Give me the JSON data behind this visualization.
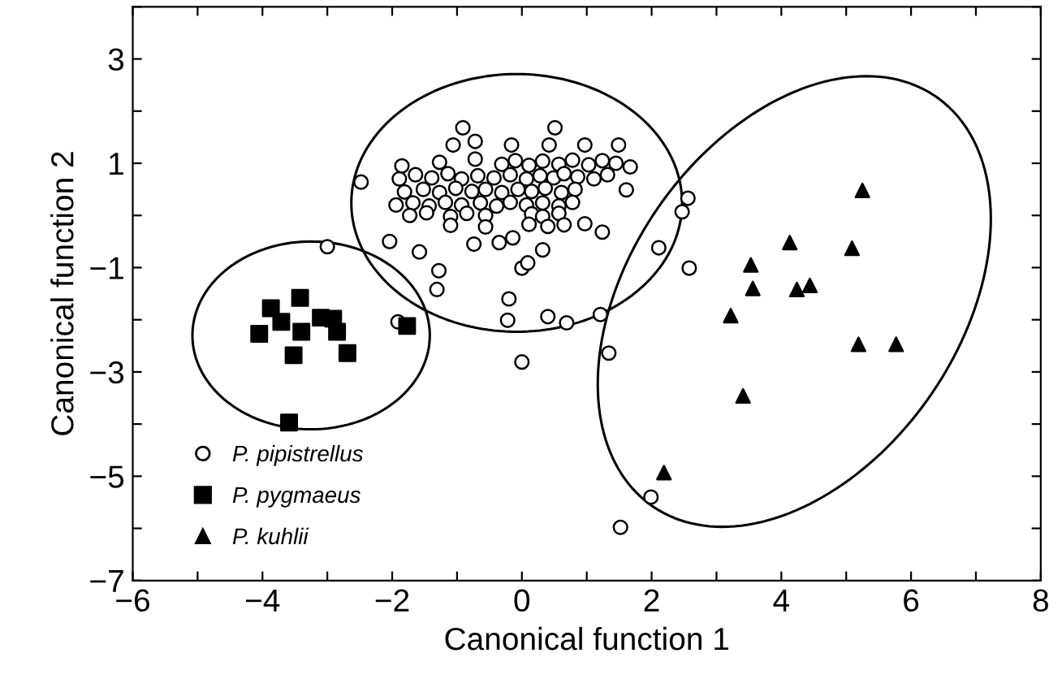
{
  "chart_data": {
    "type": "scatter",
    "xlabel": "Canonical function 1",
    "ylabel": "Canonical function 2",
    "xlim": [
      -6,
      8
    ],
    "ylim": [
      -7,
      4
    ],
    "xticks": [
      {
        "value": -6,
        "label": "−6"
      },
      {
        "value": -5,
        "label": null
      },
      {
        "value": -4,
        "label": "−4"
      },
      {
        "value": -3,
        "label": null
      },
      {
        "value": -2,
        "label": "−2"
      },
      {
        "value": -1,
        "label": null
      },
      0,
      {
        "value": 1,
        "label": null
      },
      2,
      {
        "value": 3,
        "label": null
      },
      4,
      {
        "value": 5,
        "label": null
      },
      6,
      {
        "value": 7,
        "label": null
      },
      8
    ],
    "yticks": [
      {
        "value": -7,
        "label": "−7"
      },
      {
        "value": -6,
        "label": null
      },
      {
        "value": -5,
        "label": "−5"
      },
      {
        "value": -4,
        "label": null
      },
      {
        "value": -3,
        "label": "−3"
      },
      {
        "value": -2,
        "label": null
      },
      {
        "value": -1,
        "label": "−1"
      },
      {
        "value": 0,
        "label": null
      },
      1,
      {
        "value": 2,
        "label": null
      },
      3,
      {
        "value": 4,
        "label": null
      }
    ],
    "grid": false,
    "legend": "bottom left",
    "series": [
      {
        "name": "P. pipistrellus",
        "color": "#000000",
        "marker": "circle",
        "x": [
          -2.48,
          -2.04,
          -1.58,
          -1.28,
          -1.31,
          -0.74,
          -0.35,
          -0.14,
          0.0,
          0.09,
          0.32,
          -0.2,
          -0.22,
          0.4,
          0.69,
          1.21,
          0.0,
          1.34,
          2.58,
          2.56,
          2.47,
          2.11,
          1.99,
          1.52,
          -3.0,
          -1.91,
          0.97,
          1.24,
          1.61,
          -0.91,
          0.51,
          -1.06,
          -0.72,
          -0.16,
          0.42,
          0.97,
          1.49,
          -1.85,
          -1.27,
          -0.72,
          -0.31,
          -0.1,
          0.11,
          0.32,
          0.57,
          0.78,
          1.03,
          1.24,
          1.45,
          1.67,
          -1.89,
          -1.64,
          -1.39,
          -1.14,
          -0.93,
          -0.68,
          -0.43,
          -0.18,
          0.07,
          0.28,
          0.49,
          0.65,
          0.86,
          1.11,
          1.32,
          -1.81,
          -1.52,
          -1.27,
          -1.02,
          -0.77,
          -0.56,
          -0.31,
          -0.06,
          0.15,
          0.36,
          0.61,
          0.82,
          -1.94,
          -1.68,
          -1.43,
          -1.18,
          -0.93,
          -0.64,
          -0.39,
          -0.18,
          0.07,
          0.32,
          0.57,
          0.78,
          -1.73,
          -1.47,
          -1.1,
          -0.85,
          -0.56,
          0.15,
          0.32,
          0.57,
          -1.1,
          -0.56,
          0.11,
          0.4,
          0.65
        ],
        "values": [
          0.64,
          -0.5,
          -0.7,
          -1.06,
          -1.42,
          -0.55,
          -0.52,
          -0.43,
          -1.01,
          -0.91,
          -0.66,
          -1.6,
          -2.01,
          -1.94,
          -2.06,
          -1.9,
          -2.81,
          -2.64,
          -1.01,
          0.33,
          0.07,
          -0.62,
          -5.4,
          -5.98,
          -0.6,
          -2.04,
          -0.16,
          -0.32,
          0.49,
          1.68,
          1.68,
          1.35,
          1.42,
          1.35,
          1.35,
          1.35,
          1.35,
          0.95,
          1.02,
          1.08,
          0.98,
          1.05,
          0.96,
          1.04,
          0.98,
          1.06,
          0.97,
          1.05,
          1.0,
          0.93,
          0.7,
          0.78,
          0.72,
          0.8,
          0.7,
          0.76,
          0.72,
          0.78,
          0.7,
          0.76,
          0.72,
          0.8,
          0.74,
          0.7,
          0.78,
          0.45,
          0.5,
          0.44,
          0.52,
          0.46,
          0.5,
          0.44,
          0.5,
          0.46,
          0.52,
          0.44,
          0.5,
          0.2,
          0.24,
          0.18,
          0.25,
          0.2,
          0.24,
          0.18,
          0.25,
          0.2,
          0.24,
          0.18,
          0.25,
          0.0,
          0.05,
          -0.02,
          0.04,
          0.0,
          0.03,
          -0.02,
          0.04,
          -0.19,
          -0.22,
          -0.17,
          -0.21,
          -0.18
        ]
      },
      {
        "name": "P. pygmaeus",
        "color": "#000000",
        "marker": "square",
        "x": [
          -3.42,
          -3.87,
          -3.71,
          -4.05,
          -3.4,
          -3.1,
          -2.91,
          -2.85,
          -3.52,
          -2.69,
          -1.77,
          -3.59
        ],
        "values": [
          -1.58,
          -1.78,
          -2.04,
          -2.27,
          -2.23,
          -1.96,
          -1.98,
          -2.23,
          -2.68,
          -2.64,
          -2.12,
          -3.97
        ]
      },
      {
        "name": "P. kuhlii",
        "color": "#000000",
        "marker": "triangle",
        "x": [
          5.25,
          4.13,
          5.09,
          3.53,
          3.56,
          4.24,
          4.44,
          3.22,
          5.19,
          5.77,
          3.41,
          2.19
        ],
        "values": [
          0.48,
          -0.52,
          -0.63,
          -0.95,
          -1.4,
          -1.42,
          -1.34,
          -1.92,
          -2.47,
          -2.47,
          -3.46,
          -4.93
        ]
      }
    ]
  }
}
